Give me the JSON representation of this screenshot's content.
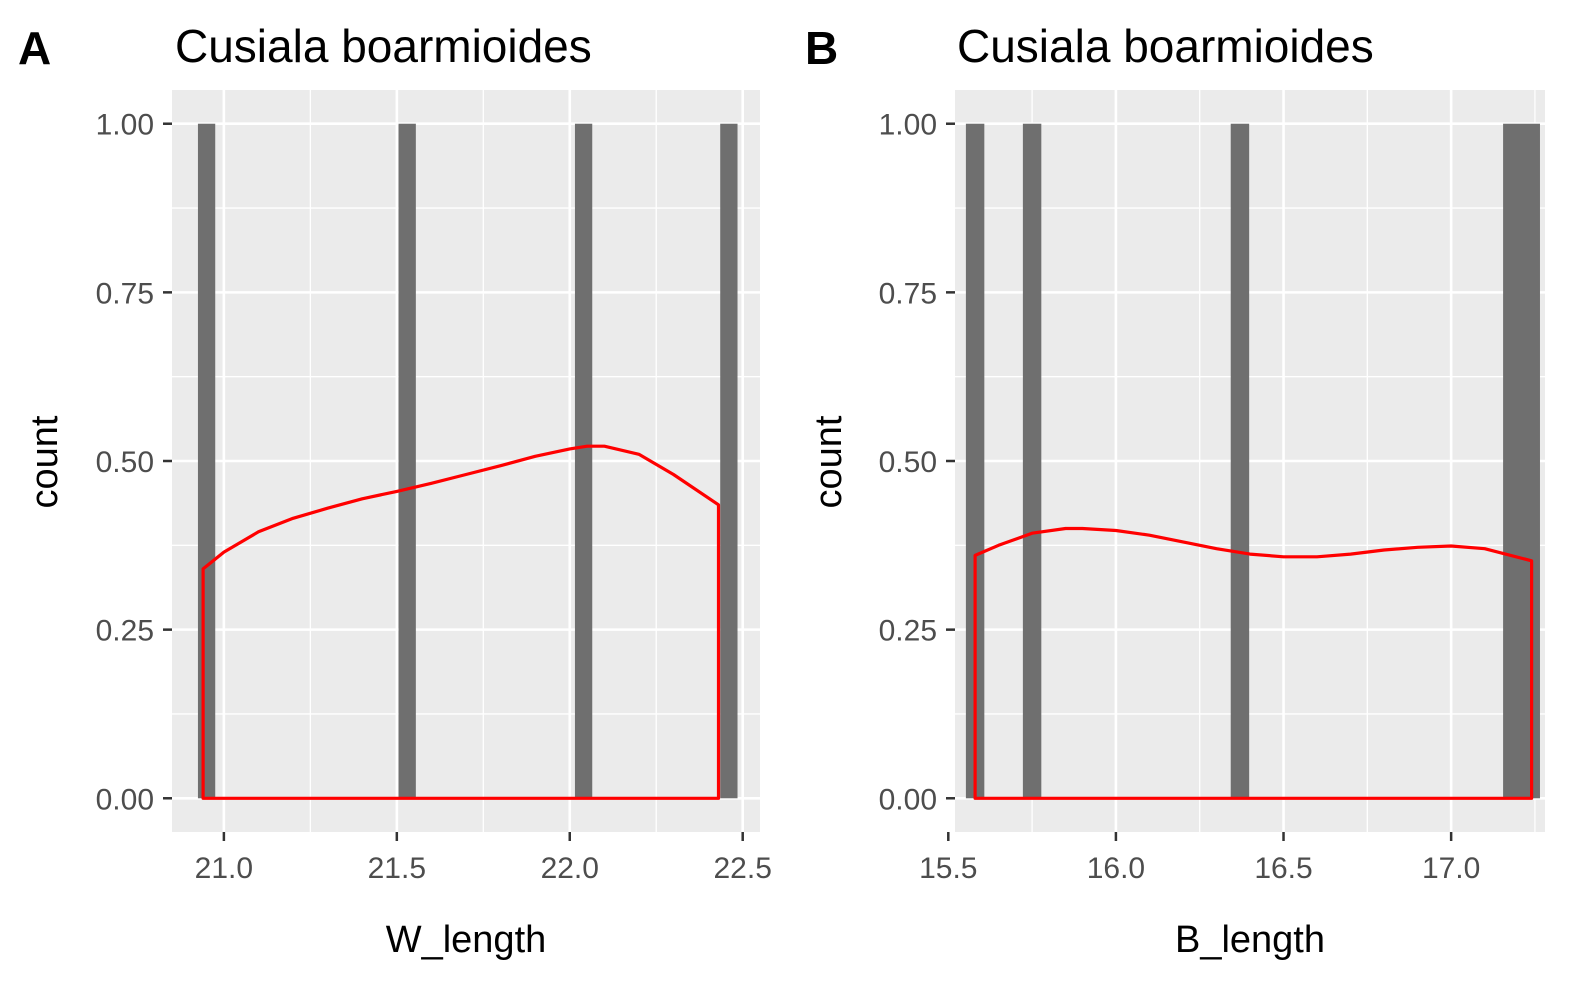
{
  "chart_data": [
    {
      "type": "bar",
      "panel_label": "A",
      "title": "Cusiala boarmioides",
      "xlabel": "W_length",
      "ylabel": "count",
      "xlim": [
        20.85,
        22.55
      ],
      "ylim": [
        -0.05,
        1.05
      ],
      "x_ticks": [
        "21.0",
        "21.5",
        "22.0",
        "22.5"
      ],
      "x_tick_values": [
        21.0,
        21.5,
        22.0,
        22.5
      ],
      "y_ticks": [
        "0.00",
        "0.25",
        "0.50",
        "0.75",
        "1.00"
      ],
      "y_tick_values": [
        0,
        0.25,
        0.5,
        0.75,
        1.0
      ],
      "bar_color": "#6f6f6f",
      "bars": [
        {
          "x": 20.95,
          "width": 0.05,
          "count": 1
        },
        {
          "x": 21.53,
          "width": 0.05,
          "count": 1
        },
        {
          "x": 22.04,
          "width": 0.05,
          "count": 1
        },
        {
          "x": 22.46,
          "width": 0.05,
          "count": 1
        }
      ],
      "density_color": "#ff0000",
      "density": {
        "x": [
          20.94,
          21.0,
          21.1,
          21.2,
          21.3,
          21.4,
          21.5,
          21.6,
          21.7,
          21.8,
          21.9,
          22.0,
          22.05,
          22.1,
          22.2,
          22.3,
          22.43
        ],
        "y": [
          0.34,
          0.365,
          0.395,
          0.415,
          0.43,
          0.444,
          0.455,
          0.467,
          0.48,
          0.493,
          0.507,
          0.518,
          0.522,
          0.522,
          0.51,
          0.48,
          0.435
        ]
      },
      "grid": true,
      "background": "#ebebeb"
    },
    {
      "type": "bar",
      "panel_label": "B",
      "title": "Cusiala boarmioides",
      "xlabel": "B_length",
      "ylabel": "count",
      "xlim": [
        15.52,
        17.28
      ],
      "ylim": [
        -0.05,
        1.05
      ],
      "x_ticks": [
        "15.5",
        "16.0",
        "16.5",
        "17.0"
      ],
      "x_tick_values": [
        15.5,
        16.0,
        16.5,
        17.0
      ],
      "y_ticks": [
        "0.00",
        "0.25",
        "0.50",
        "0.75",
        "1.00"
      ],
      "y_tick_values": [
        0,
        0.25,
        0.5,
        0.75,
        1.0
      ],
      "bar_color": "#6f6f6f",
      "bars": [
        {
          "x": 15.58,
          "width": 0.055,
          "count": 1
        },
        {
          "x": 15.75,
          "width": 0.055,
          "count": 1
        },
        {
          "x": 16.37,
          "width": 0.055,
          "count": 1
        },
        {
          "x": 17.21,
          "width": 0.11,
          "count": 1
        }
      ],
      "density_color": "#ff0000",
      "density": {
        "x": [
          15.58,
          15.65,
          15.75,
          15.85,
          15.9,
          16.0,
          16.1,
          16.2,
          16.3,
          16.4,
          16.5,
          16.6,
          16.7,
          16.8,
          16.9,
          17.0,
          17.1,
          17.24
        ],
        "y": [
          0.36,
          0.375,
          0.393,
          0.4,
          0.4,
          0.397,
          0.39,
          0.38,
          0.37,
          0.362,
          0.358,
          0.358,
          0.362,
          0.368,
          0.372,
          0.374,
          0.37,
          0.352
        ]
      },
      "grid": true,
      "background": "#ebebeb"
    }
  ]
}
